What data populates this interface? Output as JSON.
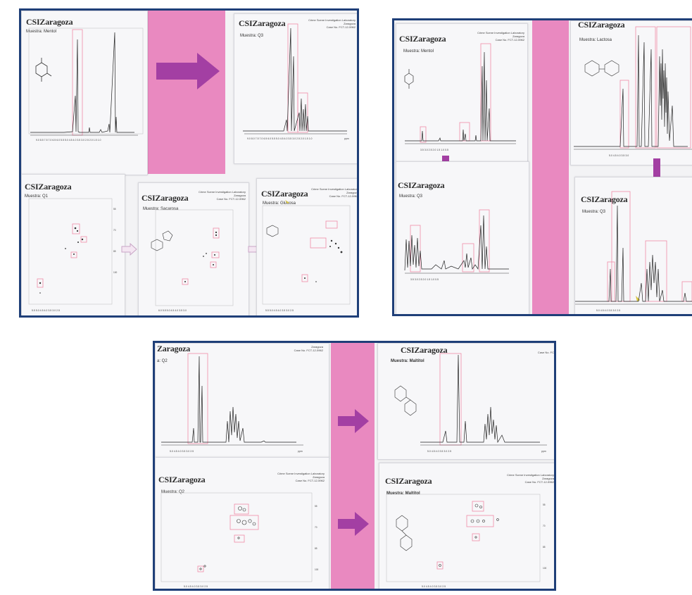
{
  "colors": {
    "frame": "#1f3f78",
    "pink_band": "#e989c0",
    "arrow": "#a33fa3",
    "highlight_box": "#f08aa8",
    "spectrum_line": "#222222"
  },
  "header_text": {
    "lab_name": "Crime Scene Investigation Laboratory",
    "city": "Zaragoza",
    "case": "Case No. FCT-12-5962"
  },
  "panel1": {
    "sheets": {
      "s1": {
        "logo": "CSIZaragoza",
        "sample": "Muestra: Mentol"
      },
      "s2": {
        "logo": "CSIZaragoza",
        "sample": "Muestra: Q3"
      },
      "s3": {
        "logo": "CSIZaragoza",
        "sample": "Muestra: Q1"
      },
      "s4": {
        "logo": "CSIZaragoza",
        "sample": "Muestra: Sacarosa"
      },
      "s5": {
        "logo": "CSIZaragoza",
        "sample": "Muestra: Glucosa"
      }
    },
    "arrow_icon": "right-arrow-icon"
  },
  "panel2": {
    "sheets": {
      "s1": {
        "logo": "CSIZaragoza",
        "sample": "Muestra: Mentol"
      },
      "s2": {
        "logo": "CSIZaragoza",
        "sample": "Muestra: Lactosa"
      },
      "s3": {
        "logo": "CSIZaragoza",
        "sample": "Muestra: Q3"
      },
      "s4": {
        "logo": "CSIZaragoza",
        "sample": "Muestra: Q3"
      }
    }
  },
  "panel3": {
    "sheets": {
      "s1": {
        "logo": "Zaragoza",
        "sample": "a: Q2"
      },
      "s2": {
        "logo": "CSIZaragoza",
        "sample": "Muestra: Maltitol"
      },
      "s3": {
        "logo": "CSIZaragoza",
        "sample": "Muestra: Q2"
      },
      "s4": {
        "logo": "CSIZaragoza",
        "sample": "Muestra: Maltitol"
      }
    },
    "case_short": "Case No. FC"
  },
  "axis_unit": "ppm"
}
